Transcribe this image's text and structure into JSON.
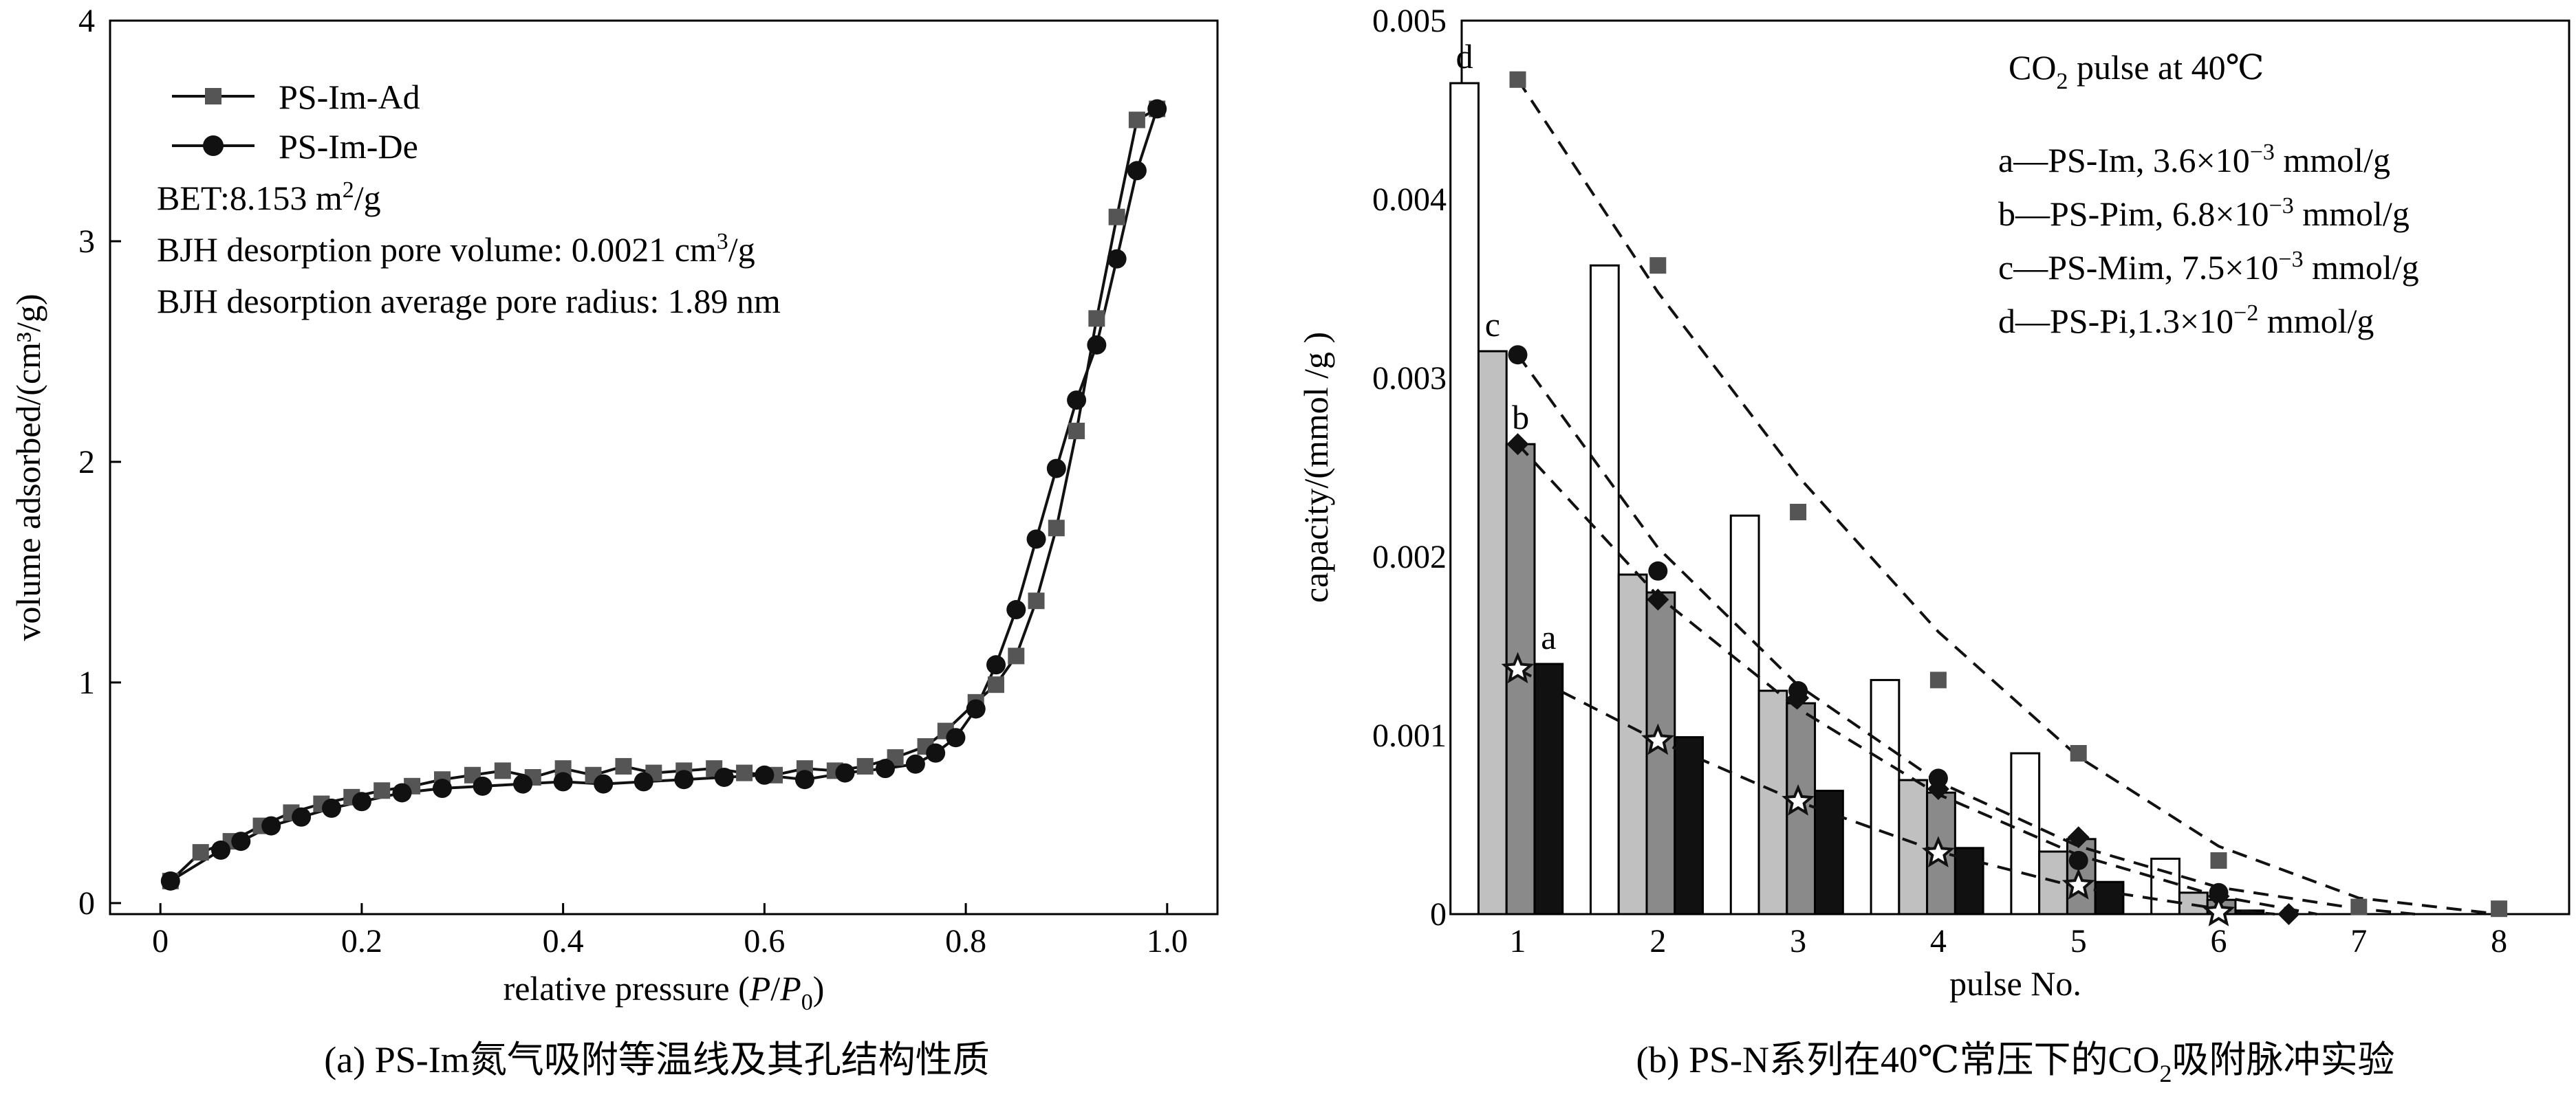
{
  "chart_data": [
    {
      "type": "line",
      "panel": "a",
      "caption": "(a) PS-Im氮气吸附等温线及其孔结构性质",
      "xlabel_prefix": "relative pressure (",
      "xlabel_P": "P",
      "xlabel_slash": "/",
      "xlabel_P0": "P",
      "xlabel_0": "0",
      "xlabel_suffix": ")",
      "ylabel": "volume adsorbed/(cm³/g)",
      "xlim": [
        -0.05,
        1.05
      ],
      "ylim": [
        -0.05,
        4
      ],
      "xticks": [
        "0",
        "0.2",
        "0.4",
        "0.6",
        "0.8",
        "1.0"
      ],
      "yticks": [
        "0",
        "1",
        "2",
        "3",
        "4"
      ],
      "legend": [
        {
          "name": "PS-Im-Ad",
          "marker": "square"
        },
        {
          "name": "PS-Im-De",
          "marker": "circle"
        }
      ],
      "annotations": {
        "bet_prefix": "BET:8.153 m",
        "bet_sup": "2",
        "bet_suffix": "/g",
        "bjh_vol_prefix": "BJH desorption pore volume: 0.0021 cm",
        "bjh_vol_sup": "3",
        "bjh_vol_suffix": "/g",
        "bjh_radius": "BJH desorption average pore radius: 1.89 nm"
      },
      "series": [
        {
          "name": "PS-Im-Ad",
          "x": [
            0.01,
            0.04,
            0.07,
            0.1,
            0.13,
            0.16,
            0.19,
            0.22,
            0.25,
            0.28,
            0.31,
            0.34,
            0.37,
            0.4,
            0.43,
            0.46,
            0.49,
            0.52,
            0.55,
            0.58,
            0.61,
            0.64,
            0.67,
            0.7,
            0.73,
            0.76,
            0.78,
            0.81,
            0.83,
            0.85,
            0.87,
            0.89,
            0.91,
            0.93,
            0.95,
            0.97,
            0.99
          ],
          "y": [
            0.1,
            0.23,
            0.28,
            0.35,
            0.41,
            0.45,
            0.48,
            0.51,
            0.53,
            0.56,
            0.58,
            0.6,
            0.57,
            0.61,
            0.58,
            0.62,
            0.59,
            0.6,
            0.61,
            0.59,
            0.58,
            0.61,
            0.6,
            0.62,
            0.66,
            0.71,
            0.78,
            0.91,
            0.99,
            1.12,
            1.37,
            1.7,
            2.14,
            2.65,
            3.11,
            3.55,
            3.6
          ]
        },
        {
          "name": "PS-Im-De",
          "x": [
            0.99,
            0.97,
            0.95,
            0.93,
            0.91,
            0.89,
            0.87,
            0.85,
            0.83,
            0.81,
            0.79,
            0.77,
            0.75,
            0.72,
            0.68,
            0.64,
            0.6,
            0.56,
            0.52,
            0.48,
            0.44,
            0.4,
            0.36,
            0.32,
            0.28,
            0.24,
            0.2,
            0.17,
            0.14,
            0.11,
            0.08,
            0.06,
            0.01
          ],
          "y": [
            3.6,
            3.32,
            2.92,
            2.53,
            2.28,
            1.97,
            1.65,
            1.33,
            1.08,
            0.88,
            0.75,
            0.68,
            0.63,
            0.61,
            0.59,
            0.56,
            0.58,
            0.57,
            0.56,
            0.55,
            0.54,
            0.55,
            0.54,
            0.53,
            0.52,
            0.5,
            0.46,
            0.43,
            0.39,
            0.35,
            0.28,
            0.24,
            0.1
          ]
        }
      ]
    },
    {
      "type": "bar",
      "panel": "b",
      "caption_prefix": "(b) PS-N系列在40℃常压下的CO",
      "caption_sub": "2",
      "caption_suffix": "吸附脉冲实验",
      "xlabel": "pulse No.",
      "ylabel": "capacity/(mmol /g )",
      "xlim": [
        0.6,
        8.5
      ],
      "ylim": [
        0,
        0.005
      ],
      "xticks": [
        "1",
        "2",
        "3",
        "4",
        "5",
        "6",
        "7",
        "8"
      ],
      "yticks": [
        "0",
        "0.001",
        "0.002",
        "0.003",
        "0.004",
        "0.005"
      ],
      "pulse_title_prefix": "CO",
      "pulse_title_sub": "2",
      "pulse_title_suffix": " pulse at 40℃",
      "legend": [
        {
          "key": "a",
          "text_prefix": "a—PS-Im, 3.6×10",
          "exp": "−3",
          "unit": " mmol/g"
        },
        {
          "key": "b",
          "text_prefix": "b—PS-Pim, 6.8×10",
          "exp": "−3",
          "unit": " mmol/g"
        },
        {
          "key": "c",
          "text_prefix": "c—PS-Mim, 7.5×10",
          "exp": "−3",
          "unit": " mmol/g"
        },
        {
          "key": "d",
          "text_prefix": "d—PS-Pi,1.3×10",
          "exp": "−2",
          "unit": " mmol/g"
        }
      ],
      "series_labels": [
        "d",
        "c",
        "b",
        "a"
      ],
      "series": [
        {
          "name": "d",
          "fill": "#ffffff",
          "marker": "square",
          "values": [
            0.00465,
            0.00363,
            0.00223,
            0.00131,
            0.0009,
            0.00031
          ],
          "markers_x": [
            1,
            2,
            3,
            4,
            5,
            6,
            7,
            8
          ],
          "markers_y": [
            0.00467,
            0.00363,
            0.00225,
            0.00131,
            0.0009,
            0.0003,
            4e-05,
            3e-05
          ]
        },
        {
          "name": "c",
          "fill": "#c0c0c0",
          "marker": "circle",
          "values": [
            0.00315,
            0.0019,
            0.00125,
            0.00075,
            0.00035,
            0.00012
          ],
          "markers_x": [
            1,
            2,
            3,
            4,
            5,
            6
          ],
          "markers_y": [
            0.00313,
            0.00192,
            0.00125,
            0.00076,
            0.0003,
            0.00012
          ]
        },
        {
          "name": "b",
          "fill": "#8a8a8a",
          "marker": "diamond",
          "values": [
            0.00263,
            0.0018,
            0.00118,
            0.00068,
            0.00042,
            8e-05
          ],
          "markers_x": [
            1,
            2,
            3,
            4,
            5,
            6,
            6.5
          ],
          "markers_y": [
            0.00263,
            0.00176,
            0.00121,
            0.0007,
            0.00043,
            0.0001,
            0.0
          ]
        },
        {
          "name": "a",
          "fill": "#111111",
          "marker": "star",
          "values": [
            0.0014,
            0.00099,
            0.00069,
            0.00037,
            0.00018,
            2e-05
          ],
          "markers_x": [
            1,
            2,
            3,
            4,
            5,
            6
          ],
          "markers_y": [
            0.00137,
            0.00097,
            0.00063,
            0.00034,
            0.00016,
            1e-05
          ]
        }
      ],
      "fit_curves": [
        {
          "name": "d",
          "x": [
            1,
            2,
            3,
            4,
            5,
            6,
            7,
            8
          ],
          "y": [
            0.00467,
            0.00348,
            0.00245,
            0.00158,
            0.00088,
            0.00038,
            9e-05,
            0.0
          ]
        },
        {
          "name": "c",
          "x": [
            1,
            2,
            3,
            4,
            5,
            6,
            7,
            7.4
          ],
          "y": [
            0.00313,
            0.00205,
            0.00128,
            0.00074,
            0.00038,
            0.00015,
            3e-05,
            0.0
          ]
        },
        {
          "name": "b",
          "x": [
            1,
            2,
            3,
            4,
            5,
            6,
            6.7
          ],
          "y": [
            0.00263,
            0.00178,
            0.00115,
            0.00067,
            0.00033,
            0.0001,
            0.0
          ]
        },
        {
          "name": "a",
          "x": [
            1,
            2,
            3,
            4,
            5,
            6,
            6.4
          ],
          "y": [
            0.00137,
            0.00097,
            0.00063,
            0.00035,
            0.00015,
            3e-05,
            0.0
          ]
        }
      ]
    }
  ]
}
